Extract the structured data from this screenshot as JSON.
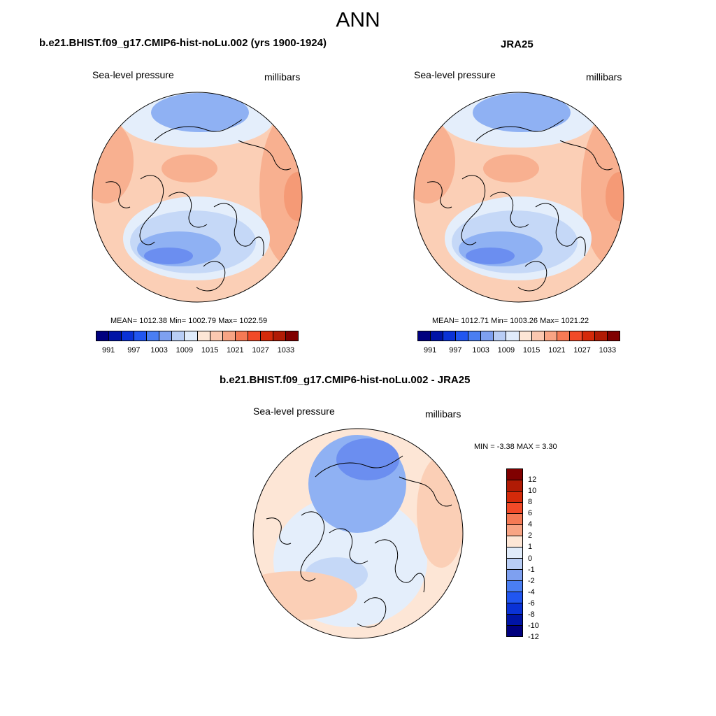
{
  "title": "ANN",
  "panels": {
    "model": {
      "title": "b.e21.BHIST.f09_g17.CMIP6-hist-noLu.002 (yrs 1900-1924)",
      "variable": "Sea-level pressure",
      "units": "millibars",
      "stats": "MEAN= 1012.38  Min= 1002.79  Max= 1022.59"
    },
    "obs": {
      "title": "JRA25",
      "variable": "Sea-level pressure",
      "units": "millibars",
      "stats": "MEAN= 1012.71  Min= 1003.26  Max= 1021.22"
    },
    "diff": {
      "title": "b.e21.BHIST.f09_g17.CMIP6-hist-noLu.002 - JRA25",
      "variable": "Sea-level pressure",
      "units": "millibars",
      "stats": "MIN =  -3.38 MAX =   3.30"
    }
  },
  "colorbar_abs": {
    "colors": [
      "#00007f",
      "#0014a6",
      "#0a32d6",
      "#2156f0",
      "#4a7ef2",
      "#7ea0f0",
      "#b8cdf5",
      "#e0ebfa",
      "#fde6d6",
      "#fbc8b0",
      "#f8a484",
      "#f57a55",
      "#f24a28",
      "#d42a0a",
      "#b11b05",
      "#800000"
    ],
    "tick_labels": [
      "991",
      "997",
      "1003",
      "1009",
      "1015",
      "1021",
      "1027",
      "1033"
    ]
  },
  "colorbar_diff": {
    "colors": [
      "#800000",
      "#b11b05",
      "#d42a0a",
      "#f24a28",
      "#f57a55",
      "#f8a484",
      "#fde6d6",
      "#e0ebfa",
      "#b8cdf5",
      "#7ea0f0",
      "#4a7ef2",
      "#2156f0",
      "#0a32d6",
      "#0014a6",
      "#00007f"
    ],
    "tick_labels": [
      "12",
      "10",
      "8",
      "6",
      "4",
      "2",
      "1",
      "0",
      "-1",
      "-2",
      "-4",
      "-6",
      "-8",
      "-10",
      "-12"
    ]
  },
  "map_colors": {
    "low_deep": "#6b8ef0",
    "low": "#8fb1f3",
    "low_light": "#c5d8f7",
    "neutral_low": "#e4eefb",
    "neutral_high": "#fde6d6",
    "high_light": "#fbcfb6",
    "high": "#f8b090",
    "high_deep": "#f59a76"
  }
}
